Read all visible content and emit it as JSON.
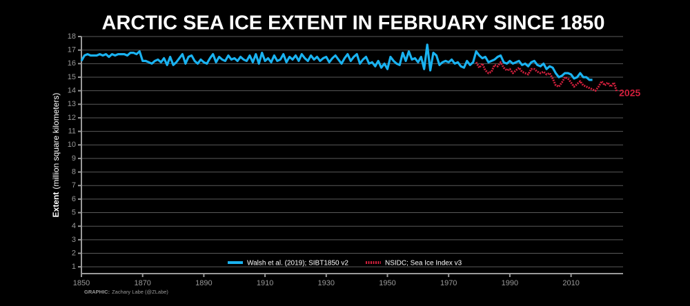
{
  "chart_data": {
    "type": "line",
    "title": "ARCTIC SEA ICE EXTENT IN FEBRUARY SINCE 1850",
    "ylabel_bold": "Extent",
    "ylabel": "(million square kilometers)",
    "annotation": "2025",
    "credit_bold": "GRAPHIC:",
    "credit": "Zachary Labe (@ZLabe)",
    "x": [
      1850,
      1851,
      1852,
      1853,
      1854,
      1855,
      1856,
      1857,
      1858,
      1859,
      1860,
      1861,
      1862,
      1863,
      1864,
      1865,
      1866,
      1867,
      1868,
      1869,
      1870,
      1871,
      1872,
      1873,
      1874,
      1875,
      1876,
      1877,
      1878,
      1879,
      1880,
      1881,
      1882,
      1883,
      1884,
      1885,
      1886,
      1887,
      1888,
      1889,
      1890,
      1891,
      1892,
      1893,
      1894,
      1895,
      1896,
      1897,
      1898,
      1899,
      1900,
      1901,
      1902,
      1903,
      1904,
      1905,
      1906,
      1907,
      1908,
      1909,
      1910,
      1911,
      1912,
      1913,
      1914,
      1915,
      1916,
      1917,
      1918,
      1919,
      1920,
      1921,
      1922,
      1923,
      1924,
      1925,
      1926,
      1927,
      1928,
      1929,
      1930,
      1931,
      1932,
      1933,
      1934,
      1935,
      1936,
      1937,
      1938,
      1939,
      1940,
      1941,
      1942,
      1943,
      1944,
      1945,
      1946,
      1947,
      1948,
      1949,
      1950,
      1951,
      1952,
      1953,
      1954,
      1955,
      1956,
      1957,
      1958,
      1959,
      1960,
      1961,
      1962,
      1963,
      1964,
      1965,
      1966,
      1967,
      1968,
      1969,
      1970,
      1971,
      1972,
      1973,
      1974,
      1975,
      1976,
      1977,
      1978,
      1979,
      1980,
      1981,
      1982,
      1983,
      1984,
      1985,
      1986,
      1987,
      1988,
      1989,
      1990,
      1991,
      1992,
      1993,
      1994,
      1995,
      1996,
      1997,
      1998,
      1999,
      2000,
      2001,
      2002,
      2003,
      2004,
      2005,
      2006,
      2007,
      2008,
      2009,
      2010,
      2011,
      2012,
      2013,
      2014,
      2015,
      2016,
      2017,
      2018,
      2019,
      2020,
      2021,
      2022,
      2023,
      2024,
      2025
    ],
    "series": [
      {
        "name": "Walsh et al. (2019); SIBT1850 v2",
        "color": "#1ab2f0",
        "style": "solid",
        "values": [
          16.2,
          16.6,
          16.7,
          16.6,
          16.6,
          16.6,
          16.7,
          16.6,
          16.7,
          16.5,
          16.7,
          16.6,
          16.7,
          16.7,
          16.7,
          16.6,
          16.8,
          16.8,
          16.7,
          16.9,
          16.2,
          16.2,
          16.1,
          16.0,
          16.2,
          16.3,
          16.1,
          16.4,
          15.9,
          16.5,
          15.9,
          16.1,
          16.4,
          16.7,
          16.0,
          16.5,
          16.6,
          16.2,
          16.0,
          16.3,
          16.1,
          16.0,
          16.4,
          16.7,
          16.1,
          16.5,
          16.3,
          16.2,
          16.6,
          16.3,
          16.4,
          16.2,
          16.5,
          16.3,
          16.2,
          16.6,
          16.1,
          16.7,
          16.0,
          16.8,
          16.2,
          16.4,
          16.1,
          16.6,
          16.2,
          16.3,
          16.7,
          16.1,
          16.5,
          16.3,
          16.6,
          16.2,
          16.7,
          16.4,
          16.2,
          16.6,
          16.3,
          16.5,
          16.2,
          16.4,
          16.5,
          16.1,
          16.4,
          16.6,
          16.3,
          16.0,
          16.4,
          16.7,
          16.2,
          16.5,
          16.7,
          16.0,
          16.3,
          16.5,
          16.0,
          16.1,
          15.8,
          16.2,
          15.7,
          16.0,
          15.6,
          16.5,
          16.2,
          16.0,
          15.9,
          16.8,
          16.2,
          16.9,
          16.3,
          16.4,
          16.1,
          16.5,
          15.6,
          17.4,
          15.5,
          16.8,
          16.6,
          15.9,
          16.1,
          16.2,
          16.1,
          16.3,
          16.0,
          16.1,
          15.8,
          15.7,
          16.2,
          15.9,
          16.1,
          16.9,
          16.6,
          16.4,
          16.5,
          16.1,
          16.2,
          16.3,
          16.5,
          16.6,
          16.1,
          16.0,
          16.2,
          16.0,
          16.1,
          16.2,
          15.9,
          16.0,
          15.8,
          16.1,
          16.2,
          15.9,
          15.8,
          16.0,
          15.6,
          15.8,
          15.7,
          15.3,
          15.0,
          15.1,
          15.3,
          15.3,
          15.2,
          14.9,
          15.0,
          15.3,
          15.0,
          15.0,
          14.8,
          14.8,
          null,
          null,
          null,
          null,
          null,
          null,
          null,
          null
        ]
      },
      {
        "name": "NSIDC; Sea Ice Index v3",
        "color": "#d11f3c",
        "style": "dotted",
        "values": [
          null,
          null,
          null,
          null,
          null,
          null,
          null,
          null,
          null,
          null,
          null,
          null,
          null,
          null,
          null,
          null,
          null,
          null,
          null,
          null,
          null,
          null,
          null,
          null,
          null,
          null,
          null,
          null,
          null,
          null,
          null,
          null,
          null,
          null,
          null,
          null,
          null,
          null,
          null,
          null,
          null,
          null,
          null,
          null,
          null,
          null,
          null,
          null,
          null,
          null,
          null,
          null,
          null,
          null,
          null,
          null,
          null,
          null,
          null,
          null,
          null,
          null,
          null,
          null,
          null,
          null,
          null,
          null,
          null,
          null,
          null,
          null,
          null,
          null,
          null,
          null,
          null,
          null,
          null,
          null,
          null,
          null,
          null,
          null,
          null,
          null,
          null,
          null,
          null,
          null,
          null,
          null,
          null,
          null,
          null,
          null,
          null,
          null,
          null,
          null,
          null,
          null,
          null,
          null,
          null,
          null,
          null,
          null,
          null,
          null,
          null,
          null,
          null,
          null,
          null,
          null,
          null,
          null,
          null,
          null,
          null,
          null,
          null,
          null,
          null,
          null,
          null,
          null,
          null,
          16.1,
          15.7,
          16.0,
          15.5,
          15.3,
          15.4,
          15.9,
          15.8,
          16.1,
          15.7,
          15.5,
          15.6,
          15.3,
          15.5,
          15.7,
          15.4,
          15.3,
          15.2,
          15.6,
          15.6,
          15.4,
          15.3,
          15.4,
          15.2,
          15.3,
          14.9,
          14.4,
          14.3,
          14.6,
          15.0,
          14.9,
          14.6,
          14.3,
          14.5,
          14.7,
          14.4,
          14.3,
          14.2,
          14.1,
          14.0,
          14.3,
          14.7,
          14.4,
          14.6,
          14.3,
          14.6,
          13.9
        ]
      }
    ],
    "xlim": [
      1850,
      2027
    ],
    "xticks": [
      1850,
      1870,
      1890,
      1910,
      1930,
      1950,
      1970,
      1990,
      2010
    ],
    "ylim": [
      0.5,
      18
    ],
    "yticks": [
      1,
      2,
      3,
      4,
      5,
      6,
      7,
      8,
      9,
      10,
      11,
      12,
      13,
      14,
      15,
      16,
      17,
      18
    ],
    "grid": true,
    "legend": "lower center"
  }
}
